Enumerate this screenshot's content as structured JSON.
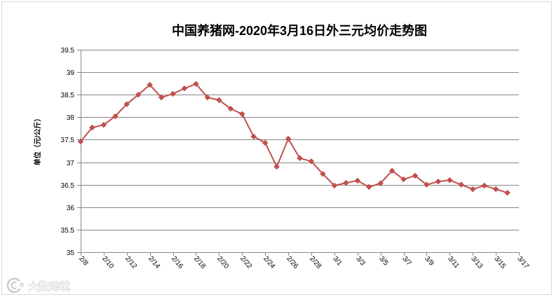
{
  "chart_data": {
    "type": "line",
    "title": "中国养猪网-2020年3月16日外三元均价走势图",
    "ylabel": "单位（元/公斤）",
    "ylim": [
      35,
      39.5
    ],
    "y_ticks": [
      35,
      35.5,
      36,
      36.5,
      37,
      37.5,
      38,
      38.5,
      39,
      39.5
    ],
    "x_range": [
      "2/8",
      "3/17"
    ],
    "x_ticks": [
      "2/8",
      "2/10",
      "2/12",
      "2/14",
      "2/16",
      "2/18",
      "2/20",
      "2/22",
      "2/24",
      "2/26",
      "2/28",
      "3/1",
      "3/3",
      "3/5",
      "3/7",
      "3/9",
      "3/11",
      "3/13",
      "3/15",
      "3/17"
    ],
    "x": [
      "2/8",
      "2/9",
      "2/10",
      "2/11",
      "2/12",
      "2/13",
      "2/14",
      "2/15",
      "2/16",
      "2/17",
      "2/18",
      "2/19",
      "2/20",
      "2/21",
      "2/22",
      "2/23",
      "2/24",
      "2/25",
      "2/26",
      "2/27",
      "2/28",
      "2/29",
      "3/1",
      "3/2",
      "3/3",
      "3/4",
      "3/5",
      "3/6",
      "3/7",
      "3/8",
      "3/9",
      "3/10",
      "3/11",
      "3/12",
      "3/13",
      "3/14",
      "3/15",
      "3/16"
    ],
    "series": [
      {
        "values": [
          37.46,
          37.77,
          37.83,
          38.02,
          38.29,
          38.5,
          38.72,
          38.44,
          38.52,
          38.64,
          38.74,
          38.44,
          38.38,
          38.19,
          38.07,
          37.57,
          37.43,
          36.9,
          37.52,
          37.09,
          37.02,
          36.74,
          36.48,
          36.54,
          36.59,
          36.45,
          36.53,
          36.81,
          36.62,
          36.7,
          36.5,
          36.57,
          36.6,
          36.5,
          36.4,
          36.48,
          36.4,
          36.32
        ],
        "color": "#c0504d",
        "marker": "diamond"
      }
    ],
    "grid": true,
    "legend": "none",
    "colors": {
      "gridline": "#868686",
      "axis": "#868686"
    }
  },
  "watermark": {
    "text": "大数跨境",
    "icon": "watermark-logo-icon"
  }
}
